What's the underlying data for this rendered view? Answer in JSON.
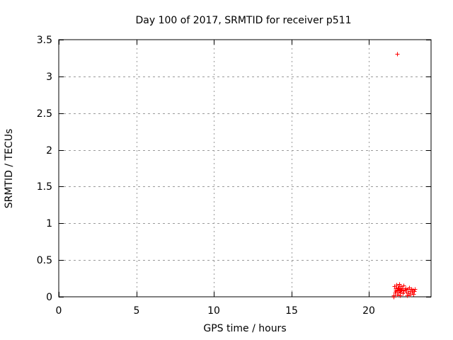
{
  "window": {
    "background_color": "#ffffff"
  },
  "chart_data": {
    "type": "scatter",
    "title": "Day 100 of 2017, SRMTID for receiver p511",
    "xlabel": "GPS time / hours",
    "ylabel": "SRMTID / TECUs",
    "xlim": [
      0,
      24
    ],
    "ylim": [
      0,
      3.5
    ],
    "xticks": [
      0,
      5,
      10,
      15,
      20
    ],
    "xtick_labels": [
      "0",
      "5",
      "10",
      "15",
      "20"
    ],
    "yticks": [
      0,
      0.5,
      1,
      1.5,
      2,
      2.5,
      3,
      3.5
    ],
    "ytick_labels": [
      "0",
      "0.5",
      "1",
      "1.5",
      "2",
      "2.5",
      "3",
      "3.5"
    ],
    "grid": true,
    "legend": "none",
    "marker": "plus",
    "marker_color": "#ff0000",
    "grid_color": "#9a9a9a",
    "axis_color": "#000000",
    "series": [
      {
        "name": "SRMTID",
        "points": [
          [
            21.81,
            3.31
          ],
          [
            21.58,
            0.02
          ],
          [
            21.58,
            0.0
          ],
          [
            21.63,
            0.14
          ],
          [
            21.67,
            0.06
          ],
          [
            21.7,
            0.1
          ],
          [
            21.72,
            0.12
          ],
          [
            21.74,
            0.08
          ],
          [
            21.76,
            0.16
          ],
          [
            21.81,
            0.09
          ],
          [
            21.81,
            0.03
          ],
          [
            21.86,
            0.13
          ],
          [
            21.88,
            0.1
          ],
          [
            21.9,
            0.06
          ],
          [
            21.92,
            0.13
          ],
          [
            21.95,
            0.17
          ],
          [
            21.95,
            0.11
          ],
          [
            21.99,
            0.02
          ],
          [
            22.0,
            0.09
          ],
          [
            22.04,
            0.14
          ],
          [
            22.04,
            0.07
          ],
          [
            22.08,
            0.1
          ],
          [
            22.13,
            0.12
          ],
          [
            22.17,
            0.05
          ],
          [
            22.22,
            0.15
          ],
          [
            22.22,
            0.09
          ],
          [
            22.31,
            0.1
          ],
          [
            22.36,
            0.12
          ],
          [
            22.4,
            0.07
          ],
          [
            22.45,
            0.02
          ],
          [
            22.49,
            0.11
          ],
          [
            22.54,
            0.05
          ],
          [
            22.58,
            0.13
          ],
          [
            22.63,
            0.08
          ],
          [
            22.63,
            0.03
          ],
          [
            22.72,
            0.11
          ],
          [
            22.77,
            0.06
          ],
          [
            22.81,
            0.1
          ],
          [
            22.86,
            0.04
          ],
          [
            22.9,
            0.08
          ],
          [
            22.95,
            0.11
          ]
        ]
      }
    ]
  }
}
